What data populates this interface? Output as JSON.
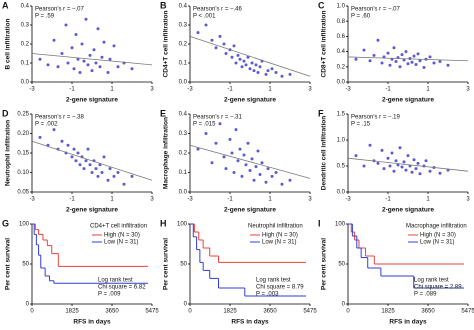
{
  "chart_data": [
    {
      "type": "scatter",
      "label": "A",
      "ylabel": "B cell infiltration",
      "xlabel": "2-gene signature",
      "annotations": [
        "Pearson's r = −.07",
        "P = .59"
      ],
      "color": "#5a5ad8",
      "x": [
        -2.6,
        -2.2,
        -1.9,
        -1.7,
        -1.5,
        -1.3,
        -1.2,
        -1.0,
        -0.9,
        -0.8,
        -0.7,
        -0.6,
        -0.5,
        -0.4,
        -0.3,
        -0.2,
        -0.1,
        0.0,
        0.1,
        0.2,
        0.3,
        0.4,
        0.5,
        0.6,
        0.8,
        0.9,
        1.1,
        1.3,
        1.6,
        2.0
      ],
      "values": [
        0.12,
        0.09,
        0.22,
        0.08,
        0.15,
        0.3,
        0.1,
        0.18,
        0.07,
        0.25,
        0.12,
        0.05,
        0.2,
        0.11,
        0.33,
        0.09,
        0.14,
        0.06,
        0.17,
        0.1,
        0.28,
        0.08,
        0.13,
        0.21,
        0.05,
        0.12,
        0.19,
        0.08,
        0.1,
        0.07
      ],
      "trend": {
        "x": [
          -3,
          3
        ],
        "values": [
          0.15,
          0.09
        ]
      },
      "xlim": [
        -3,
        3
      ],
      "xticks": [
        -3,
        -1,
        1,
        3
      ],
      "ylim": [
        0,
        0.4
      ],
      "yticks": [
        {
          "value": 0,
          "label": "0.0"
        },
        0.1,
        0.2,
        0.3,
        0.4
      ]
    },
    {
      "type": "scatter",
      "label": "B",
      "ylabel": "CD4+T cell infiltration",
      "xlabel": "2-gene signature",
      "annotations": [
        "Pearson's r = −.46",
        "P < .001"
      ],
      "color": "#5a5ad8",
      "x": [
        -2.6,
        -2.2,
        -1.9,
        -1.7,
        -1.5,
        -1.3,
        -1.2,
        -1.0,
        -0.9,
        -0.8,
        -0.7,
        -0.6,
        -0.5,
        -0.4,
        -0.3,
        -0.2,
        -0.1,
        0.0,
        0.1,
        0.2,
        0.3,
        0.4,
        0.5,
        0.6,
        0.8,
        0.9,
        1.1,
        1.3,
        1.6,
        2.0
      ],
      "values": [
        0.26,
        0.3,
        0.22,
        0.18,
        0.24,
        0.2,
        0.15,
        0.17,
        0.13,
        0.19,
        0.1,
        0.14,
        0.12,
        0.08,
        0.11,
        0.09,
        0.13,
        0.07,
        0.1,
        0.06,
        0.09,
        0.05,
        0.08,
        0.11,
        0.04,
        0.06,
        0.07,
        0.05,
        0.03,
        0.04
      ],
      "trend": {
        "x": [
          -3,
          3
        ],
        "values": [
          0.24,
          0.03
        ]
      },
      "xlim": [
        -3,
        3
      ],
      "xticks": [
        -3,
        -1,
        1,
        3
      ],
      "ylim": [
        0,
        0.4
      ],
      "yticks": [
        {
          "value": 0,
          "label": "0.0"
        },
        0.1,
        0.2,
        0.3,
        0.4
      ]
    },
    {
      "type": "scatter",
      "label": "C",
      "ylabel": "CD8+T cell infiltration",
      "xlabel": "2-gene signature",
      "annotations": [
        "Pearson's r = −.07",
        "P = .60"
      ],
      "color": "#5a5ad8",
      "x": [
        -2.6,
        -2.2,
        -1.9,
        -1.7,
        -1.5,
        -1.3,
        -1.2,
        -1.0,
        -0.9,
        -0.8,
        -0.7,
        -0.6,
        -0.5,
        -0.4,
        -0.3,
        -0.2,
        -0.1,
        0.0,
        0.1,
        0.2,
        0.3,
        0.4,
        0.5,
        0.6,
        0.8,
        0.9,
        1.1,
        1.3,
        1.6,
        2.0
      ],
      "values": [
        0.3,
        0.42,
        0.28,
        0.35,
        0.55,
        0.25,
        0.33,
        0.38,
        0.22,
        0.3,
        0.45,
        0.27,
        0.32,
        0.2,
        0.36,
        0.29,
        0.4,
        0.24,
        0.31,
        0.26,
        0.34,
        0.23,
        0.37,
        0.28,
        0.19,
        0.3,
        0.33,
        0.25,
        0.27,
        0.22
      ],
      "trend": {
        "x": [
          -3,
          3
        ],
        "values": [
          0.33,
          0.28
        ]
      },
      "xlim": [
        -3,
        3
      ],
      "xticks": [
        -3,
        -1,
        1,
        3
      ],
      "ylim": [
        0,
        1
      ],
      "yticks": [
        {
          "value": 0,
          "label": "0.0"
        },
        0.2,
        0.4,
        0.6,
        0.8,
        {
          "value": 1,
          "label": "1.0"
        }
      ]
    },
    {
      "type": "scatter",
      "label": "D",
      "ylabel": "Neutrophil infiltration",
      "xlabel": "2-gene signature",
      "annotations": [
        "Pearson's r = −.38",
        "P = .002"
      ],
      "color": "#5a5ad8",
      "x": [
        -2.6,
        -2.2,
        -1.9,
        -1.7,
        -1.5,
        -1.3,
        -1.2,
        -1.0,
        -0.9,
        -0.8,
        -0.7,
        -0.6,
        -0.5,
        -0.4,
        -0.3,
        -0.2,
        -0.1,
        0.0,
        0.1,
        0.2,
        0.3,
        0.4,
        0.5,
        0.6,
        0.8,
        0.9,
        1.1,
        1.3,
        1.6,
        2.0
      ],
      "values": [
        0.19,
        0.17,
        0.21,
        0.16,
        0.18,
        0.15,
        0.17,
        0.14,
        0.16,
        0.13,
        0.15,
        0.12,
        0.14,
        0.11,
        0.13,
        0.16,
        0.12,
        0.1,
        0.13,
        0.11,
        0.09,
        0.12,
        0.1,
        0.14,
        0.08,
        0.11,
        0.09,
        0.1,
        0.07,
        0.09
      ],
      "trend": {
        "x": [
          -3,
          3
        ],
        "values": [
          0.18,
          0.08
        ]
      },
      "xlim": [
        -3,
        3
      ],
      "xticks": [
        -3,
        -1,
        1,
        3
      ],
      "ylim": [
        0.05,
        0.25
      ],
      "yticks": [
        0.05,
        {
          "value": 0.1,
          "label": "0.10"
        },
        0.15,
        {
          "value": 0.2,
          "label": "0.20"
        },
        0.25
      ]
    },
    {
      "type": "scatter",
      "label": "E",
      "ylabel": "Macrophage infiltration",
      "xlabel": "2-gene signature",
      "annotations": [
        "Pearson's r = −.31",
        "P = .015"
      ],
      "color": "#5a5ad8",
      "x": [
        -2.6,
        -2.2,
        -1.9,
        -1.7,
        -1.5,
        -1.3,
        -1.2,
        -1.0,
        -0.9,
        -0.8,
        -0.7,
        -0.6,
        -0.5,
        -0.4,
        -0.3,
        -0.2,
        -0.1,
        0.0,
        0.1,
        0.2,
        0.3,
        0.4,
        0.5,
        0.6,
        0.8,
        0.9,
        1.1,
        1.3,
        1.6,
        2.0
      ],
      "values": [
        0.22,
        0.3,
        0.15,
        0.25,
        0.35,
        0.18,
        0.12,
        0.27,
        0.2,
        0.1,
        0.32,
        0.16,
        0.22,
        0.08,
        0.19,
        0.14,
        0.25,
        0.11,
        0.17,
        0.06,
        0.13,
        0.21,
        0.09,
        0.15,
        0.05,
        0.12,
        0.08,
        0.1,
        0.04,
        0.06
      ],
      "trend": {
        "x": [
          -3,
          3
        ],
        "values": [
          0.24,
          0.07
        ]
      },
      "xlim": [
        -3,
        3
      ],
      "xticks": [
        -3,
        -1,
        1,
        3
      ],
      "ylim": [
        0,
        0.4
      ],
      "yticks": [
        {
          "value": 0,
          "label": "0.0"
        },
        0.1,
        0.2,
        0.3,
        0.4
      ]
    },
    {
      "type": "scatter",
      "label": "F",
      "ylabel": "Dendritic cell infiltration",
      "xlabel": "2-gene signature",
      "annotations": [
        "Pearson's r = −.19",
        "P = .15"
      ],
      "color": "#5a5ad8",
      "x": [
        -2.6,
        -2.2,
        -1.9,
        -1.7,
        -1.5,
        -1.3,
        -1.2,
        -1.0,
        -0.9,
        -0.8,
        -0.7,
        -0.6,
        -0.5,
        -0.4,
        -0.3,
        -0.2,
        -0.1,
        0.0,
        0.1,
        0.2,
        0.3,
        0.4,
        0.5,
        0.6,
        0.8,
        0.9,
        1.1,
        1.3,
        1.6,
        2.0
      ],
      "values": [
        0.7,
        0.5,
        0.9,
        0.6,
        0.55,
        0.8,
        0.45,
        0.65,
        0.5,
        0.75,
        0.4,
        0.6,
        0.52,
        0.85,
        0.48,
        0.58,
        0.42,
        0.7,
        0.5,
        0.38,
        0.62,
        0.45,
        0.55,
        0.35,
        0.5,
        0.6,
        0.4,
        0.47,
        0.36,
        0.42
      ],
      "trend": {
        "x": [
          -3,
          3
        ],
        "values": [
          0.65,
          0.4
        ]
      },
      "xlim": [
        -3,
        3
      ],
      "xticks": [
        -3,
        -1,
        1,
        3
      ],
      "ylim": [
        0,
        1.5
      ],
      "yticks": [
        {
          "value": 0,
          "label": "0.0"
        },
        0.5,
        {
          "value": 1,
          "label": "1.0"
        },
        1.5
      ]
    },
    {
      "type": "survival",
      "label": "G",
      "title": "CD4+T cell infiltration",
      "ylabel": "Per cent survival",
      "xlabel": "RFS in days",
      "annotations": [
        "Log rank test",
        "Chi square = 6.82",
        "P = .009"
      ],
      "series": [
        {
          "name": "High (N = 30)",
          "color": "#e8423a",
          "x": [
            0,
            150,
            300,
            500,
            700,
            900,
            1200
          ],
          "values": [
            100,
            93,
            87,
            80,
            73,
            63,
            47
          ]
        },
        {
          "name": "Low (N = 31)",
          "color": "#2f3fd6",
          "x": [
            0,
            100,
            200,
            300,
            400,
            600,
            800,
            1000
          ],
          "values": [
            100,
            87,
            74,
            61,
            45,
            35,
            29,
            26
          ]
        }
      ],
      "xlim": [
        0,
        5475
      ],
      "xticks": [
        0,
        1825,
        3650,
        5475
      ],
      "ylim": [
        0,
        100
      ],
      "yticks": [
        0,
        50,
        100
      ]
    },
    {
      "type": "survival",
      "label": "H",
      "title": "Neutrophil infiltration",
      "ylabel": "Per cent survival",
      "xlabel": "RFS in days",
      "annotations": [
        "Log rank test",
        "Chi square = 8.79",
        "P = .003"
      ],
      "series": [
        {
          "name": "High (N = 30)",
          "color": "#e8423a",
          "x": [
            0,
            200,
            400,
            600,
            900,
            1300
          ],
          "values": [
            100,
            90,
            80,
            70,
            60,
            52
          ]
        },
        {
          "name": "Low (N = 31)",
          "color": "#2f3fd6",
          "x": [
            0,
            150,
            300,
            450,
            600,
            900,
            1300,
            2500
          ],
          "values": [
            100,
            84,
            68,
            52,
            42,
            32,
            20,
            10
          ]
        }
      ],
      "xlim": [
        0,
        5475
      ],
      "xticks": [
        0,
        1825,
        3650,
        5475
      ],
      "ylim": [
        0,
        100
      ],
      "yticks": [
        0,
        50,
        100
      ]
    },
    {
      "type": "survival",
      "label": "I",
      "title": "Macrophage infiltration",
      "ylabel": "Per cent survival",
      "xlabel": "RFS in days",
      "annotations": [
        "Log rank test",
        "Chi square = 2.89",
        "P = .089"
      ],
      "series": [
        {
          "name": "High (N = 30)",
          "color": "#e8423a",
          "x": [
            0,
            150,
            300,
            500,
            800,
            1200
          ],
          "values": [
            100,
            90,
            80,
            70,
            60,
            50
          ]
        },
        {
          "name": "Low (N = 31)",
          "color": "#2f3fd6",
          "x": [
            0,
            200,
            400,
            600,
            900,
            1500,
            3000
          ],
          "values": [
            100,
            85,
            70,
            58,
            45,
            35,
            20
          ]
        }
      ],
      "xlim": [
        0,
        5475
      ],
      "xticks": [
        0,
        1825,
        3650,
        5475
      ],
      "ylim": [
        0,
        100
      ],
      "yticks": [
        0,
        50,
        100
      ]
    }
  ]
}
